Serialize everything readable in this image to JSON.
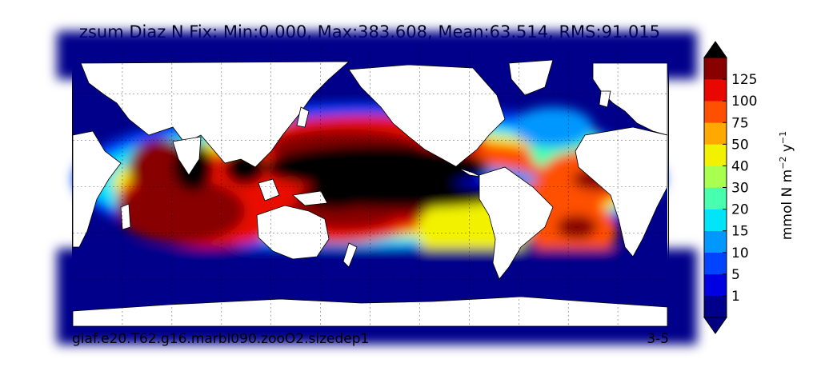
{
  "title": "zsum Diaz N Fix: Min:0.000, Max:383.608, Mean:63.514, RMS:91.015",
  "footer": {
    "case_name": "giaf.e20.T62.g16.marbl090.zooO2.sizedep1",
    "years": "3-5"
  },
  "chart_data": {
    "type": "heatmap",
    "title": "zsum Diaz N Fix: Min:0.000, Max:383.608, Mean:63.514, RMS:91.015",
    "variable": "zsum Diaz N Fix",
    "stats": {
      "min": 0.0,
      "max": 383.608,
      "mean": 63.514,
      "rms": 91.015
    },
    "projection": "global map",
    "grid": true,
    "colorbar": {
      "label_base": "mmol N m",
      "label_exp1": "−2",
      "label_mid": " y",
      "label_exp2": "−1",
      "extend": "both",
      "levels": [
        0,
        1,
        5,
        10,
        15,
        20,
        30,
        40,
        50,
        75,
        100,
        125,
        150
      ],
      "tick_labels": [
        "1",
        "5",
        "10",
        "15",
        "20",
        "30",
        "40",
        "50",
        "75",
        "100",
        "125"
      ],
      "colors": [
        "#00008a",
        "#0000e0",
        "#0044ff",
        "#0098ff",
        "#00e4f8",
        "#48ffb0",
        "#a8ff50",
        "#f2f200",
        "#ffa800",
        "#ff5000",
        "#e80800",
        "#880000"
      ],
      "under_color": "#000080",
      "over_color": "#000000"
    },
    "land_color": "#ffffff"
  }
}
